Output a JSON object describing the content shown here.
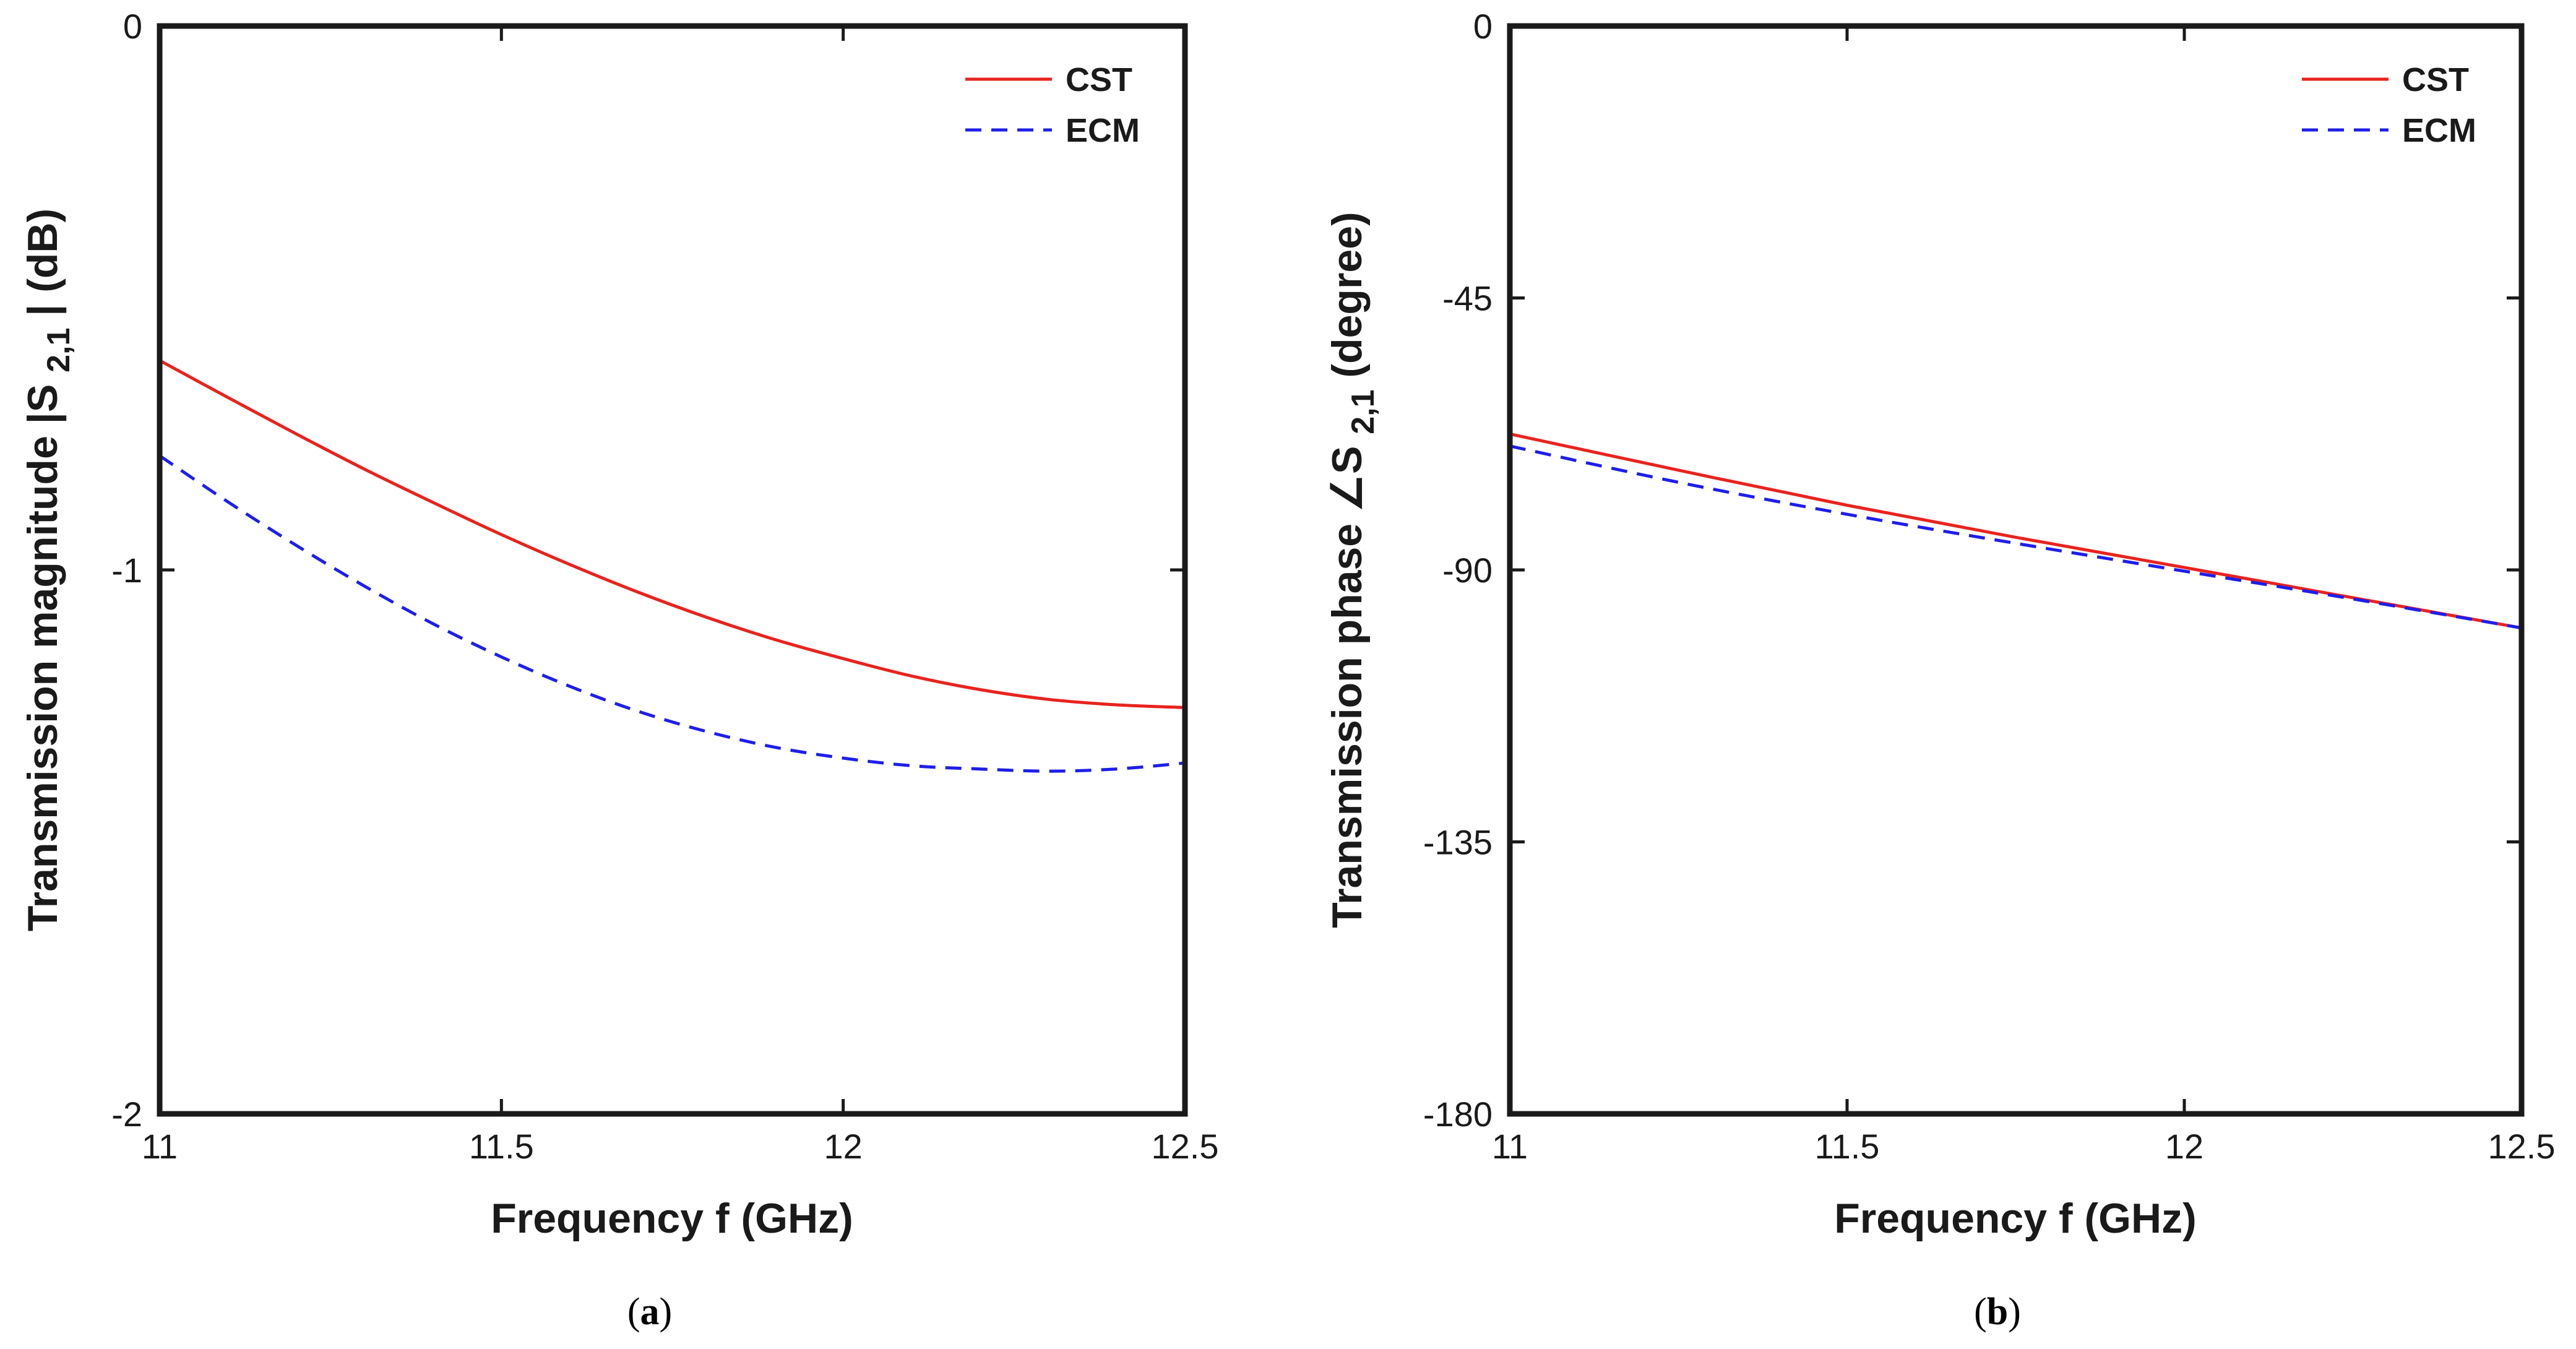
{
  "chart_data": [
    {
      "type": "line",
      "panel": "a",
      "caption": {
        "open": "(",
        "letter": "a",
        "close": ")"
      },
      "xlabel": "Frequency f (GHz)",
      "ylabel": {
        "prefix": "Transmission magnitude  |S",
        "subscript": "2,1",
        "suffix": "| (dB)"
      },
      "xlim": [
        11,
        12.5
      ],
      "ylim": [
        -2,
        0
      ],
      "xticks": [
        11,
        11.5,
        12,
        12.5
      ],
      "xtick_labels": [
        "11",
        "11.5",
        "12",
        "12.5"
      ],
      "yticks": [
        -2,
        -1,
        0
      ],
      "ytick_labels": [
        "-2",
        "-1",
        "0"
      ],
      "legend_position": "top-right",
      "series": [
        {
          "name": "CST",
          "color": "#e8231e",
          "style": "solid",
          "x": [
            11,
            11.1,
            11.2,
            11.3,
            11.4,
            11.5,
            11.6,
            11.7,
            11.8,
            11.9,
            12,
            12.1,
            12.2,
            12.3,
            12.4,
            12.5
          ],
          "y": [
            -0.615,
            -0.683,
            -0.75,
            -0.815,
            -0.876,
            -0.935,
            -0.99,
            -1.041,
            -1.087,
            -1.128,
            -1.163,
            -1.195,
            -1.22,
            -1.238,
            -1.248,
            -1.253
          ]
        },
        {
          "name": "ECM",
          "color": "#1e1eeb",
          "style": "dashed",
          "x": [
            11,
            11.1,
            11.2,
            11.3,
            11.4,
            11.5,
            11.6,
            11.7,
            11.8,
            11.9,
            12,
            12.1,
            12.2,
            12.3,
            12.4,
            12.5
          ],
          "y": [
            -0.79,
            -0.875,
            -0.955,
            -1.03,
            -1.099,
            -1.16,
            -1.214,
            -1.26,
            -1.297,
            -1.326,
            -1.346,
            -1.36,
            -1.366,
            -1.37,
            -1.366,
            -1.355
          ]
        }
      ]
    },
    {
      "type": "line",
      "panel": "b",
      "caption": {
        "open": "(",
        "letter": "b",
        "close": ")"
      },
      "xlabel": "Frequency f (GHz)",
      "ylabel": {
        "prefix": "Transmission phase  ∠S",
        "subscript": "2,1",
        "suffix": "  (degree)"
      },
      "xlim": [
        11,
        12.5
      ],
      "ylim": [
        -180,
        0
      ],
      "xticks": [
        11,
        11.5,
        12,
        12.5
      ],
      "xtick_labels": [
        "11",
        "11.5",
        "12",
        "12.5"
      ],
      "yticks": [
        -180,
        -135,
        -90,
        -45,
        0
      ],
      "ytick_labels": [
        "-180",
        "-135",
        "-90",
        "-45",
        "0"
      ],
      "legend_position": "top-right",
      "series": [
        {
          "name": "CST",
          "color": "#e8231e",
          "style": "solid",
          "x": [
            11,
            11.25,
            11.5,
            11.75,
            12,
            12.25,
            12.5
          ],
          "y": [
            -67.5,
            -73.5,
            -79.3,
            -84.6,
            -89.6,
            -94.6,
            -99.6
          ]
        },
        {
          "name": "ECM",
          "color": "#1e1eeb",
          "style": "dashed",
          "x": [
            11,
            11.25,
            11.5,
            11.75,
            12,
            12.25,
            12.5
          ],
          "y": [
            -69.5,
            -75.5,
            -80.8,
            -85.6,
            -90.2,
            -94.8,
            -99.6
          ]
        }
      ]
    }
  ]
}
